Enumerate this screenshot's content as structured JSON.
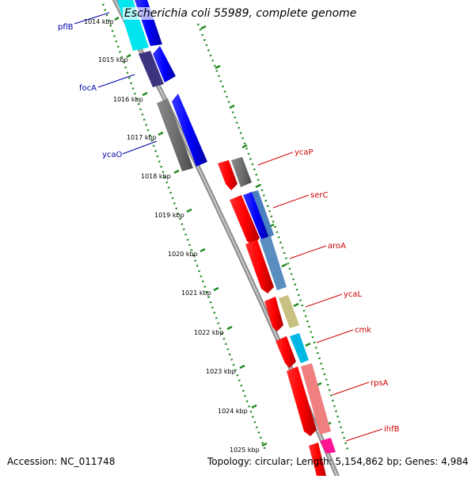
{
  "title": "Escherichia coli 55989, complete genome",
  "accession": "Accession: NC_011748",
  "summary": "Topology: circular; Length: 5,154,862 bp; Genes: 4,984",
  "ticks": [
    "1014 kbp",
    "1015 kbp",
    "1016 kbp",
    "1017 kbp",
    "1018 kbp",
    "1019 kbp",
    "1020 kbp",
    "1021 kbp",
    "1022 kbp",
    "1023 kbp",
    "1024 kbp",
    "1025 kbp"
  ],
  "gene_labels": {
    "pflB": "pflB",
    "focA": "focA",
    "ycaO": "ycaO",
    "ycaP": "ycaP",
    "serC": "serC",
    "aroA": "aroA",
    "ycaL": "ycaL",
    "cmk": "cmk",
    "rpsA": "rpsA",
    "ihfB": "ihfB"
  },
  "colors": {
    "forward_label": "#0000aa",
    "reverse_label": "#cc0000",
    "tick": "#228b22",
    "backbone": "#888888"
  }
}
